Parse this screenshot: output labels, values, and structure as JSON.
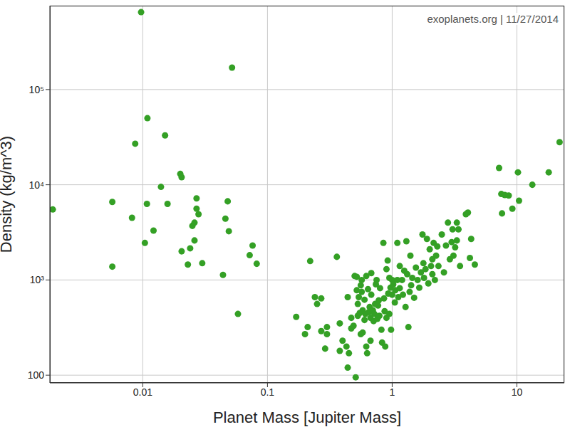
{
  "chart_data": {
    "type": "scatter",
    "annotation": "exoplanets.org | 11/27/2014",
    "x_label": "Planet Mass [Jupiter Mass]",
    "y_label": "Density (kg/m^3)",
    "log": true,
    "grid": true,
    "xlim": [
      0.0018,
      24
    ],
    "ylim": [
      83,
      760000
    ],
    "xticks": [
      0.01,
      0.1,
      1,
      10
    ],
    "yticks": [
      100,
      {
        "value": 1000,
        "label": "10³"
      },
      {
        "value": 10000,
        "label": "10⁴"
      },
      {
        "value": 100000,
        "label": "10⁵"
      }
    ],
    "color": "#34a025",
    "marker": "circle",
    "x": [
      0.0019,
      0.0057,
      0.0057,
      0.0082,
      0.0087,
      0.0097,
      0.0104,
      0.0108,
      0.0109,
      0.0122,
      0.014,
      0.0151,
      0.0158,
      0.02,
      0.0205,
      0.0205,
      0.023,
      0.024,
      0.025,
      0.026,
      0.026,
      0.027,
      0.027,
      0.028,
      0.03,
      0.044,
      0.046,
      0.048,
      0.049,
      0.052,
      0.058,
      0.072,
      0.076,
      0.082,
      0.17,
      0.2,
      0.21,
      0.22,
      0.24,
      0.25,
      0.27,
      0.27,
      0.29,
      0.3,
      0.3,
      0.36,
      0.38,
      0.38,
      0.4,
      0.43,
      0.44,
      0.44,
      0.45,
      0.47,
      0.47,
      0.49,
      0.5,
      0.51,
      0.52,
      0.52,
      0.53,
      0.53,
      0.54,
      0.55,
      0.56,
      0.57,
      0.57,
      0.58,
      0.58,
      0.6,
      0.6,
      0.61,
      0.62,
      0.62,
      0.63,
      0.64,
      0.65,
      0.66,
      0.67,
      0.68,
      0.68,
      0.7,
      0.71,
      0.72,
      0.73,
      0.74,
      0.75,
      0.76,
      0.78,
      0.79,
      0.8,
      0.82,
      0.83,
      0.85,
      0.86,
      0.87,
      0.88,
      0.9,
      0.9,
      0.92,
      0.93,
      0.95,
      0.97,
      0.98,
      1,
      1,
      1.02,
      1.05,
      1.06,
      1.1,
      1.12,
      1.15,
      1.15,
      1.2,
      1.22,
      1.25,
      1.28,
      1.3,
      1.32,
      1.35,
      1.38,
      1.4,
      1.42,
      1.45,
      1.5,
      1.55,
      1.6,
      1.65,
      1.7,
      1.75,
      1.78,
      1.8,
      1.85,
      1.9,
      1.95,
      2,
      2.05,
      2.1,
      2.1,
      2.15,
      2.2,
      2.25,
      2.3,
      2.35,
      2.5,
      2.6,
      2.7,
      2.8,
      2.9,
      3,
      3.05,
      3.1,
      3.2,
      3.3,
      3.4,
      3.5,
      3.9,
      4.05,
      4.2,
      4.3,
      4.6,
      3.3,
      1.1,
      0.95,
      0.77,
      0.67,
      0.56,
      7.2,
      7.5,
      7.6,
      8,
      8.6,
      9.2,
      10.2,
      10.4,
      13.3,
      18,
      22
    ],
    "values": [
      5500,
      6600,
      1380,
      4500,
      27000,
      650000,
      2450,
      6300,
      50000,
      3300,
      9500,
      33000,
      6300,
      13000,
      12000,
      2000,
      1450,
      2150,
      3700,
      4000,
      2600,
      5600,
      7200,
      4900,
      1500,
      1130,
      4400,
      6700,
      3250,
      170000,
      440,
      1820,
      2300,
      1480,
      410,
      270,
      320,
      1580,
      660,
      560,
      640,
      290,
      190,
      320,
      270,
      1750,
      350,
      180,
      230,
      200,
      120,
      660,
      170,
      310,
      400,
      330,
      1100,
      95,
      1080,
      780,
      560,
      420,
      660,
      450,
      880,
      1000,
      750,
      480,
      280,
      380,
      620,
      440,
      1100,
      200,
      170,
      800,
      460,
      520,
      400,
      1180,
      700,
      480,
      370,
      440,
      560,
      900,
      1000,
      390,
      610,
      420,
      820,
      300,
      220,
      2450,
      640,
      470,
      200,
      1300,
      400,
      1600,
      720,
      440,
      830,
      300,
      1000,
      700,
      900,
      580,
      780,
      1000,
      660,
      1400,
      820,
      1000,
      700,
      1250,
      520,
      2550,
      1150,
      320,
      750,
      1800,
      880,
      1050,
      650,
      1350,
      1000,
      830,
      1200,
      3000,
      1500,
      1050,
      1300,
      2700,
      920,
      2100,
      1400,
      1150,
      1650,
      2450,
      1000,
      1800,
      2250,
      1400,
      3000,
      1200,
      2300,
      4000,
      1650,
      2500,
      3400,
      1800,
      2200,
      4000,
      3400,
      1400,
      4900,
      5100,
      1700,
      2700,
      1450,
      2600,
      2450,
      1050,
      540,
      230,
      270,
      15000,
      8000,
      5000,
      7800,
      7700,
      5600,
      13500,
      6800,
      10000,
      13500,
      28000
    ]
  }
}
